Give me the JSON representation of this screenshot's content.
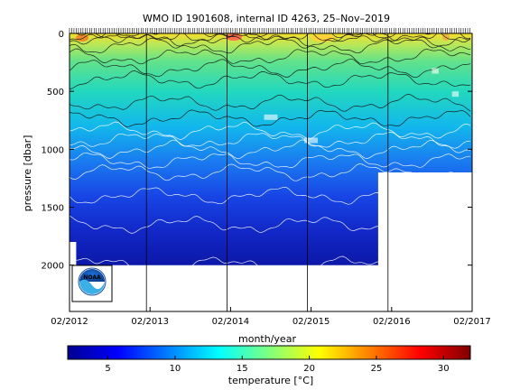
{
  "chart_data": {
    "type": "heatmap",
    "title": "WMO ID 1901608, internal ID 4263, 25–Nov–2019",
    "xlabel": "month/year",
    "ylabel": "pressure [dbar]",
    "x_ticks": [
      "02/2012",
      "02/2013",
      "02/2014",
      "02/2015",
      "02/2016",
      "02/2017"
    ],
    "x_range": [
      "02/2012",
      "02/2017"
    ],
    "y_ticks": [
      0,
      500,
      1000,
      1500,
      2000
    ],
    "y_range": [
      0,
      2400
    ],
    "y_reversed": true,
    "colorbar": {
      "label": "temperature [°C]",
      "ticks": [
        5,
        10,
        15,
        20,
        25,
        30
      ],
      "range": [
        2,
        32
      ],
      "colormap": "jet"
    },
    "contour_levels_degC": [
      3,
      4,
      5,
      6,
      7,
      8,
      9,
      10,
      11,
      12,
      13,
      14,
      15,
      16,
      17,
      18,
      19,
      20
    ],
    "profiles_max_depth_dbar": [
      {
        "period": "02/2012 - 03/2012",
        "depth": 1800
      },
      {
        "period": "03/2012 - 05/2014",
        "depth": 2000
      },
      {
        "period": "05/2014 - 12/2015",
        "depth": 2000
      },
      {
        "period": "12/2015 - 02/2017",
        "depth": 1200
      }
    ],
    "temperature_profile_degC": [
      {
        "pressure": 0,
        "temperature": 18
      },
      {
        "pressure": 100,
        "temperature": 16
      },
      {
        "pressure": 200,
        "temperature": 15
      },
      {
        "pressure": 400,
        "temperature": 13
      },
      {
        "pressure": 600,
        "temperature": 12
      },
      {
        "pressure": 800,
        "temperature": 10.5
      },
      {
        "pressure": 1000,
        "temperature": 8
      },
      {
        "pressure": 1200,
        "temperature": 6
      },
      {
        "pressure": 1500,
        "temperature": 4.5
      },
      {
        "pressure": 1800,
        "temperature": 3.5
      },
      {
        "pressure": 2000,
        "temperature": 3
      }
    ],
    "logo_text": "NOAA"
  }
}
